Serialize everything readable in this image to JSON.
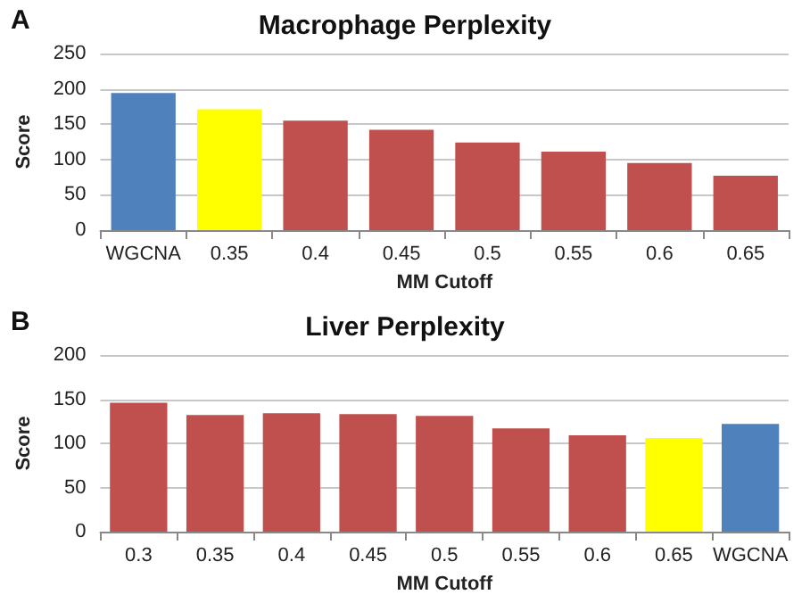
{
  "chart_data": [
    {
      "type": "bar",
      "title": "Macrophage Perplexity",
      "xlabel": "MM Cutoff",
      "ylabel": "Score",
      "annotations": [
        "A"
      ],
      "categories": [
        "WGCNA",
        "0.35",
        "0.4",
        "0.45",
        "0.5",
        "0.55",
        "0.6",
        "0.65"
      ],
      "values": [
        194,
        171,
        155,
        142,
        124,
        111,
        95,
        77
      ],
      "colors": [
        "#4f81bd",
        "#ffff00",
        "#c0504d",
        "#c0504d",
        "#c0504d",
        "#c0504d",
        "#c0504d",
        "#c0504d"
      ],
      "ylim": [
        0,
        250
      ],
      "yticks": [
        0,
        50,
        100,
        150,
        200,
        250
      ],
      "grid": "y"
    },
    {
      "type": "bar",
      "title": "Liver Perplexity",
      "xlabel": "MM Cutoff",
      "ylabel": "Score",
      "annotations": [
        "B"
      ],
      "categories": [
        "0.3",
        "0.35",
        "0.4",
        "0.45",
        "0.5",
        "0.55",
        "0.6",
        "0.65",
        "WGCNA"
      ],
      "values": [
        146,
        132,
        134,
        133,
        131,
        117,
        109,
        106,
        122
      ],
      "colors": [
        "#c0504d",
        "#c0504d",
        "#c0504d",
        "#c0504d",
        "#c0504d",
        "#c0504d",
        "#c0504d",
        "#ffff00",
        "#4f81bd"
      ],
      "ylim": [
        0,
        200
      ],
      "yticks": [
        0,
        50,
        100,
        150,
        200
      ],
      "grid": "y"
    }
  ]
}
